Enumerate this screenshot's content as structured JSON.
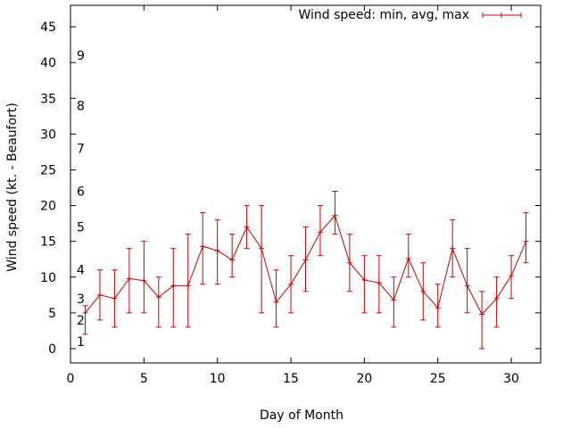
{
  "chart_data": {
    "type": "line",
    "xlabel": "Day of Month",
    "ylabel": "Wind speed (kt. - Beaufort)",
    "xlim": [
      0,
      32
    ],
    "ylim": [
      -2,
      48
    ],
    "xticks": [
      0,
      5,
      10,
      15,
      20,
      25,
      30
    ],
    "yticks": [
      0,
      5,
      10,
      15,
      20,
      25,
      30,
      35,
      40,
      45
    ],
    "legend": {
      "placement": "top-right"
    },
    "beaufort_annotations": [
      {
        "label": "1",
        "y": 1
      },
      {
        "label": "2",
        "y": 4
      },
      {
        "label": "3",
        "y": 7
      },
      {
        "label": "4",
        "y": 11
      },
      {
        "label": "5",
        "y": 17
      },
      {
        "label": "6",
        "y": 22
      },
      {
        "label": "7",
        "y": 28
      },
      {
        "label": "8",
        "y": 34
      },
      {
        "label": "9",
        "y": 41
      }
    ],
    "series": [
      {
        "name": "Wind speed: min, avg, max",
        "color": "#cc0000",
        "x": [
          1,
          2,
          3,
          4,
          5,
          6,
          7,
          8,
          9,
          10,
          11,
          12,
          13,
          14,
          15,
          16,
          17,
          18,
          19,
          20,
          21,
          22,
          23,
          24,
          25,
          26,
          27,
          28,
          29,
          30,
          31
        ],
        "avg": [
          5,
          7.5,
          7,
          9.8,
          9.5,
          7.2,
          8.8,
          8.8,
          14.3,
          13.7,
          12.4,
          17,
          14,
          6.5,
          9,
          12.4,
          16.3,
          18.6,
          12,
          9.6,
          9.2,
          6.8,
          12.6,
          8,
          5.7,
          14,
          8.8,
          4.8,
          7,
          10.2,
          15
        ],
        "min": [
          2,
          4,
          3,
          5,
          5,
          3,
          3,
          3,
          9,
          9,
          10,
          14,
          5,
          3,
          5,
          8,
          13,
          16,
          8,
          5,
          5,
          3,
          10,
          4,
          3,
          10,
          5,
          0,
          3,
          7,
          12
        ],
        "max": [
          6,
          11,
          11,
          14,
          15,
          10,
          14,
          16,
          19,
          18,
          16,
          20,
          20,
          11,
          13,
          17,
          20,
          22,
          16,
          13,
          13,
          10,
          16,
          12,
          9,
          18,
          14,
          8,
          10,
          13,
          19
        ]
      }
    ]
  }
}
